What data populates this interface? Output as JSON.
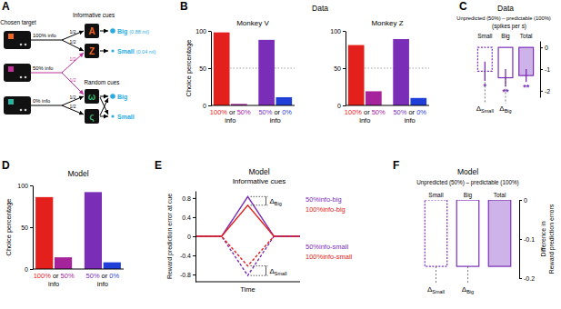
{
  "diagram": {
    "panel": "A",
    "chosen_target": "Chosen target",
    "rows": [
      "100% info",
      "50% info",
      "0% info"
    ],
    "informative_cues": "Informative cues",
    "random_cues": "Random cues",
    "informative_symbols": [
      "A",
      "Z"
    ],
    "random_symbols": [
      "ω",
      "ς"
    ],
    "outcomes_informative": [
      "Big",
      "Small"
    ],
    "amounts": [
      "(0.88 ml)",
      "(0.04 ml)"
    ],
    "outcomes_random": [
      "Big",
      "Small"
    ],
    "probability": "1/2"
  },
  "chart_data": [
    {
      "panel": "B",
      "type": "bar",
      "title": "Data",
      "subtitle": "Monkey V",
      "y_label": "Choice percentage",
      "categories": [
        "100%",
        "50%",
        "50%",
        "0%"
      ],
      "values": [
        98,
        2,
        88,
        11
      ],
      "colors": [
        "#e3201b",
        "#a5249b",
        "#7a2eb8",
        "#1f3fd8"
      ],
      "annotations": [
        "or",
        "info"
      ],
      "ylim": [
        0,
        100
      ],
      "yticks": [
        0,
        50,
        100
      ],
      "grid": true
    },
    {
      "type": "bar",
      "subtitle": "Monkey Z",
      "categories": [
        "100%",
        "50%",
        "50%",
        "0%"
      ],
      "values": [
        81,
        19,
        89,
        10
      ],
      "colors": [
        "#e3201b",
        "#a5249b",
        "#7a2eb8",
        "#1f3fd8"
      ],
      "annotations": [
        "or",
        "info"
      ],
      "ylim": [
        0,
        100
      ],
      "yticks": [
        0,
        50,
        100
      ],
      "grid": true
    },
    {
      "panel": "C",
      "type": "bar",
      "title": "Data",
      "subtitle": "Unpredicted (50%) – predictable (100%)",
      "y_label": "(spikes per s)",
      "categories": [
        "Small",
        "Big",
        "Total"
      ],
      "values": [
        -1.1,
        -1.4,
        -1.3
      ],
      "errors": [
        0.45,
        0.4,
        0.3
      ],
      "color": "#7a2eb8",
      "colors": [
        "none",
        "none",
        "#cdb3e8"
      ],
      "line_style": [
        "dotted",
        "solid",
        "solid"
      ],
      "annotations": [
        "*",
        "**",
        "**"
      ],
      "delta_labels": [
        {
          "symbol": "Δ",
          "sub": "Small"
        },
        {
          "symbol": "Δ",
          "sub": "Big"
        }
      ],
      "ylim": [
        -2.3,
        0.3
      ],
      "yticks": [
        0,
        -1,
        -2
      ]
    },
    {
      "panel": "D",
      "type": "bar",
      "title": "Model",
      "y_label": "Choice percentage",
      "categories": [
        "100%",
        "50%",
        "50%",
        "0%"
      ],
      "values": [
        86,
        14,
        92,
        8
      ],
      "colors": [
        "#e3201b",
        "#a5249b",
        "#7a2eb8",
        "#1f3fd8"
      ],
      "annotations": [
        "or",
        "info"
      ],
      "ylim": [
        0,
        100
      ],
      "yticks": [
        0,
        50,
        100
      ],
      "grid": false
    },
    {
      "panel": "E",
      "type": "line",
      "title": "Model",
      "subtitle": "Informative cues",
      "x_label": "Time",
      "y_label": "Reward prediction error at cue",
      "x": [
        0,
        1,
        2,
        3,
        4
      ],
      "xlim": [
        0,
        4
      ],
      "ylim": [
        -0.95,
        0.95
      ],
      "yticks": [
        -0.8,
        -0.4,
        0,
        0.4,
        0.8
      ],
      "tick_labels": "y",
      "legend": "right",
      "series": [
        {
          "name": "50%info-big",
          "color": "#7a2eb8",
          "line_style": "solid",
          "values": [
            0,
            0,
            0.83,
            0,
            0
          ]
        },
        {
          "name": "100%info-big",
          "color": "#e3201b",
          "line_style": "solid",
          "values": [
            0,
            0,
            0.65,
            0,
            0
          ]
        },
        {
          "name": "50%info-small",
          "color": "#7a2eb8",
          "line_style": "dashed",
          "values": [
            0,
            0,
            -0.82,
            0,
            0
          ]
        },
        {
          "name": "100%info-small",
          "color": "#e3201b",
          "line_style": "dashed",
          "values": [
            0,
            0,
            -0.62,
            0,
            0
          ]
        }
      ],
      "delta_labels": [
        {
          "symbol": "Δ",
          "sub": "Big"
        },
        {
          "symbol": "Δ",
          "sub": "Small"
        }
      ]
    },
    {
      "panel": "F",
      "type": "bar",
      "title": "Model",
      "subtitle": "Unpredicted (50%) – predictable (100%)",
      "y_label": "Difference in Reward prediction errors",
      "categories": [
        "Small",
        "Big",
        "Total"
      ],
      "values": [
        -0.17,
        -0.17,
        -0.17
      ],
      "color": "#7a2eb8",
      "colors": [
        "none",
        "none",
        "#cdb3e8"
      ],
      "line_style": [
        "dotted",
        "solid",
        "solid"
      ],
      "delta_labels": [
        {
          "symbol": "Δ",
          "sub": "Small"
        },
        {
          "symbol": "Δ",
          "sub": "Big"
        }
      ],
      "ylim": [
        -0.2,
        0
      ],
      "yticks": [
        0,
        -0.1,
        -0.2
      ]
    }
  ]
}
